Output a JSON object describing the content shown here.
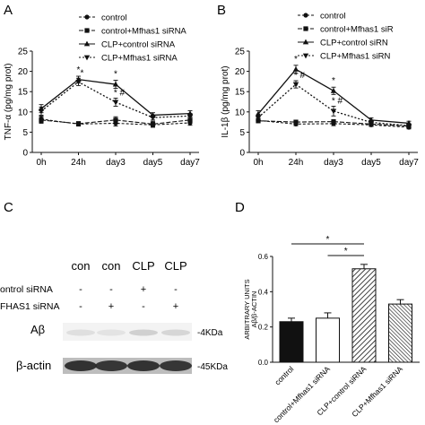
{
  "panels": {
    "A": {
      "letter": "A"
    },
    "B": {
      "letter": "B"
    },
    "C": {
      "letter": "C"
    },
    "D": {
      "letter": "D"
    }
  },
  "colors": {
    "ink": "#111111",
    "blot_band": "#2a2a2a"
  },
  "chart_data": [
    {
      "type": "line",
      "panel": "A",
      "ylabel": "TNF-α (pg/mg prot)",
      "ylim": [
        0,
        25
      ],
      "yticks": [
        "0",
        "5",
        "10",
        "15",
        "20",
        "25"
      ],
      "categories": [
        "0h",
        "24h",
        "day3",
        "day5",
        "day7"
      ],
      "legend": [
        "control",
        "control+Mfhas1 siRNA",
        "CLP+control siRNA",
        "CLP+Mfhas1 siRNA"
      ],
      "series": [
        {
          "name": "control",
          "values": [
            8.2,
            7.0,
            7.2,
            6.8,
            7.3
          ],
          "errors": [
            0.8,
            0.5,
            0.7,
            0.6,
            0.6
          ]
        },
        {
          "name": "control+Mfhas1 siRNA",
          "values": [
            8.0,
            7.1,
            8.0,
            7.0,
            8.0
          ],
          "errors": [
            0.8,
            0.5,
            0.8,
            0.7,
            0.7
          ]
        },
        {
          "name": "CLP+control siRNA",
          "values": [
            10.8,
            18.0,
            16.8,
            9.2,
            9.6
          ],
          "errors": [
            1.0,
            0.8,
            1.0,
            0.6,
            0.7
          ]
        },
        {
          "name": "CLP+Mfhas1 siRNA",
          "values": [
            10.2,
            17.4,
            12.4,
            8.6,
            9.0
          ],
          "errors": [
            1.0,
            0.9,
            1.0,
            0.6,
            0.6
          ]
        }
      ],
      "annotations": [
        {
          "category": "24h",
          "text": "*"
        },
        {
          "category": "24h",
          "text": "*"
        },
        {
          "category": "day3",
          "text": "*"
        },
        {
          "category": "day3",
          "text": "* #"
        }
      ]
    },
    {
      "type": "line",
      "panel": "B",
      "ylabel": "IL-1β (pg/mg prot)",
      "ylim": [
        0,
        25
      ],
      "yticks": [
        "0",
        "5",
        "10",
        "15",
        "20",
        "25"
      ],
      "categories": [
        "0h",
        "24h",
        "day3",
        "day5",
        "day7"
      ],
      "legend": [
        "control",
        "control+Mfhas1 siR",
        "CLP+control siRN",
        "CLP+Mfhas1 siRN"
      ],
      "series": [
        {
          "name": "control",
          "values": [
            7.9,
            7.0,
            7.1,
            6.8,
            6.2
          ],
          "errors": [
            0.5,
            0.4,
            0.5,
            0.4,
            0.4
          ]
        },
        {
          "name": "control+Mfhas1 siR",
          "values": [
            7.8,
            7.5,
            7.6,
            7.0,
            6.5
          ],
          "errors": [
            0.5,
            0.4,
            0.5,
            0.4,
            0.4
          ]
        },
        {
          "name": "CLP+control siRN",
          "values": [
            9.5,
            20.5,
            15.2,
            8.0,
            7.2
          ],
          "errors": [
            0.8,
            1.0,
            0.9,
            0.5,
            0.5
          ]
        },
        {
          "name": "CLP+Mfhas1 siRN",
          "values": [
            8.6,
            16.8,
            10.2,
            7.4,
            6.6
          ],
          "errors": [
            0.7,
            0.9,
            1.2,
            0.5,
            0.4
          ]
        }
      ],
      "annotations": [
        {
          "category": "24h",
          "text": "*"
        },
        {
          "category": "24h",
          "text": "* #"
        },
        {
          "category": "day3",
          "text": "*"
        },
        {
          "category": "day3",
          "text": "* #"
        }
      ]
    },
    {
      "type": "bar",
      "panel": "D",
      "ylabel": "ARBITRARY UNITS Aβ/β-ACTIN",
      "ylim": [
        0,
        0.6
      ],
      "yticks": [
        "0.0",
        "0.2",
        "0.4",
        "0.6"
      ],
      "categories": [
        "control",
        "control+Mfhas1 siRNA",
        "CLP+control siRNA",
        "CLP+Mfhas1 siRNA"
      ],
      "values": [
        0.23,
        0.25,
        0.53,
        0.33
      ],
      "errors": [
        0.02,
        0.03,
        0.025,
        0.025
      ],
      "fills": [
        "solid-black",
        "white",
        "diagonal-hatch",
        "diagonal-hatch-dense"
      ],
      "significance": [
        {
          "from": 0,
          "to": 2,
          "text": "*"
        },
        {
          "from": 1,
          "to": 2,
          "text": "*"
        }
      ]
    }
  ],
  "blot": {
    "lanes": [
      "con",
      "con",
      "CLP",
      "CLP"
    ],
    "rows": [
      {
        "label": "ontrol siRNA",
        "marks": [
          "-",
          "-",
          "+",
          "-"
        ]
      },
      {
        "label": "FHAS1 siRNA",
        "marks": [
          "-",
          "+",
          "-",
          "+"
        ]
      }
    ],
    "bands": [
      {
        "label": "Aβ",
        "marker": "-4KDa",
        "intensity": [
          0.12,
          0.1,
          0.22,
          0.18
        ]
      },
      {
        "label": "β-actin",
        "marker": "-45KDa",
        "intensity": [
          0.95,
          0.92,
          0.95,
          0.92
        ]
      }
    ]
  }
}
